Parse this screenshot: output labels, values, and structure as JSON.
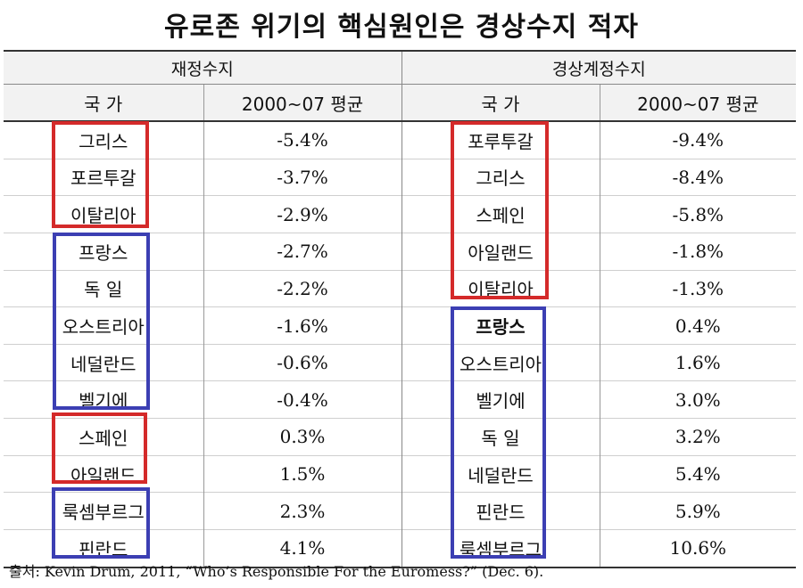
{
  "title": "유로존 위기의 핵심원인은 경상수지 적자",
  "table": {
    "group_headers": [
      "재정수지",
      "경상계정수지"
    ],
    "col_headers": [
      "국 가",
      "2000~07 평균",
      "국 가",
      "2000~07 평균"
    ],
    "rows": [
      {
        "fiscal_country": "그리스",
        "fiscal_value": "-5.4%",
        "current_country": "포루투갈",
        "current_value": "-9.4%"
      },
      {
        "fiscal_country": "포르투갈",
        "fiscal_value": "-3.7%",
        "current_country": "그리스",
        "current_value": "-8.4%"
      },
      {
        "fiscal_country": "이탈리아",
        "fiscal_value": "-2.9%",
        "current_country": "스페인",
        "current_value": "-5.8%"
      },
      {
        "fiscal_country": "프랑스",
        "fiscal_value": "-2.7%",
        "current_country": "아일랜드",
        "current_value": "-1.8%"
      },
      {
        "fiscal_country": "독 일",
        "fiscal_value": "-2.2%",
        "current_country": "이탈리아",
        "current_value": "-1.3%"
      },
      {
        "fiscal_country": "오스트리아",
        "fiscal_value": "-1.6%",
        "current_country": "프랑스",
        "current_value": "0.4%"
      },
      {
        "fiscal_country": "네덜란드",
        "fiscal_value": "-0.6%",
        "current_country": "오스트리아",
        "current_value": "1.6%"
      },
      {
        "fiscal_country": "벨기에",
        "fiscal_value": "-0.4%",
        "current_country": "벨기에",
        "current_value": "3.0%"
      },
      {
        "fiscal_country": "스페인",
        "fiscal_value": "0.3%",
        "current_country": "독 일",
        "current_value": "3.2%"
      },
      {
        "fiscal_country": "아일랜드",
        "fiscal_value": "1.5%",
        "current_country": "네덜란드",
        "current_value": "5.4%"
      },
      {
        "fiscal_country": "룩셈부르그",
        "fiscal_value": "2.3%",
        "current_country": "핀란드",
        "current_value": "5.9%"
      },
      {
        "fiscal_country": "핀란드",
        "fiscal_value": "4.1%",
        "current_country": "룩셈부르그",
        "current_value": "10.6%"
      }
    ]
  },
  "highlight_colors": {
    "red": "#d42a2a",
    "blue": "#3c3fb3"
  },
  "source": {
    "label": "출처",
    "text": ": Kevin Drum, 2011, “Who’s Responsible For the Euromess?” (Dec. 6)."
  }
}
